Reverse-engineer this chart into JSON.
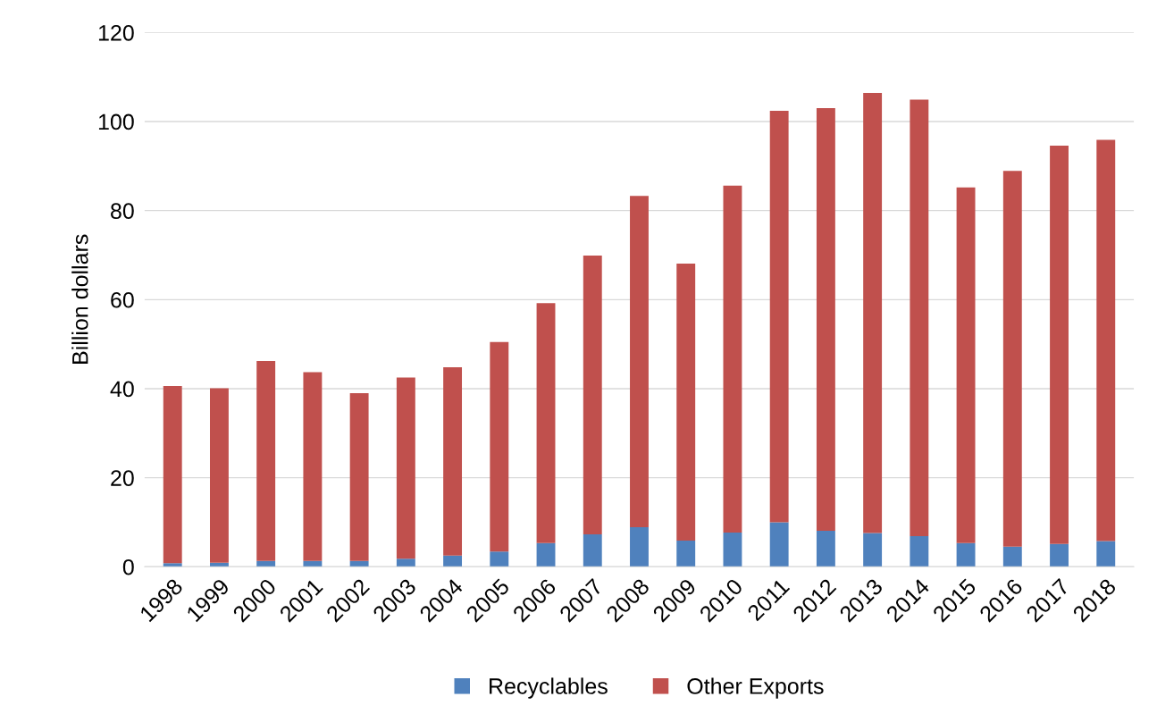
{
  "chart_data": {
    "type": "bar",
    "stacked": true,
    "ylabel": "Billion dollars",
    "categories": [
      "1998",
      "1999",
      "2000",
      "2001",
      "2002",
      "2003",
      "2004",
      "2005",
      "2006",
      "2007",
      "2008",
      "2009",
      "2010",
      "2011",
      "2012",
      "2013",
      "2014",
      "2015",
      "2016",
      "2017",
      "2018"
    ],
    "series": [
      {
        "name": "Recyclables",
        "color": "#4f81bd",
        "values": [
          0.8,
          0.9,
          1.3,
          1.3,
          1.3,
          1.8,
          2.5,
          3.4,
          5.3,
          7.3,
          8.9,
          5.9,
          7.7,
          10.0,
          8.1,
          7.6,
          6.9,
          5.3,
          4.5,
          5.1,
          5.8
        ]
      },
      {
        "name": "Other Exports",
        "color": "#c0504d",
        "values": [
          39.8,
          39.2,
          44.9,
          42.4,
          37.7,
          40.7,
          42.3,
          47.1,
          53.9,
          62.6,
          74.4,
          62.2,
          77.9,
          92.4,
          94.9,
          98.8,
          98.0,
          79.9,
          84.4,
          89.5,
          90.1
        ]
      }
    ],
    "ylim": [
      0,
      120
    ],
    "yticks": [
      0,
      20,
      40,
      60,
      80,
      100,
      120
    ],
    "grid": "y",
    "legend": "bottom"
  }
}
